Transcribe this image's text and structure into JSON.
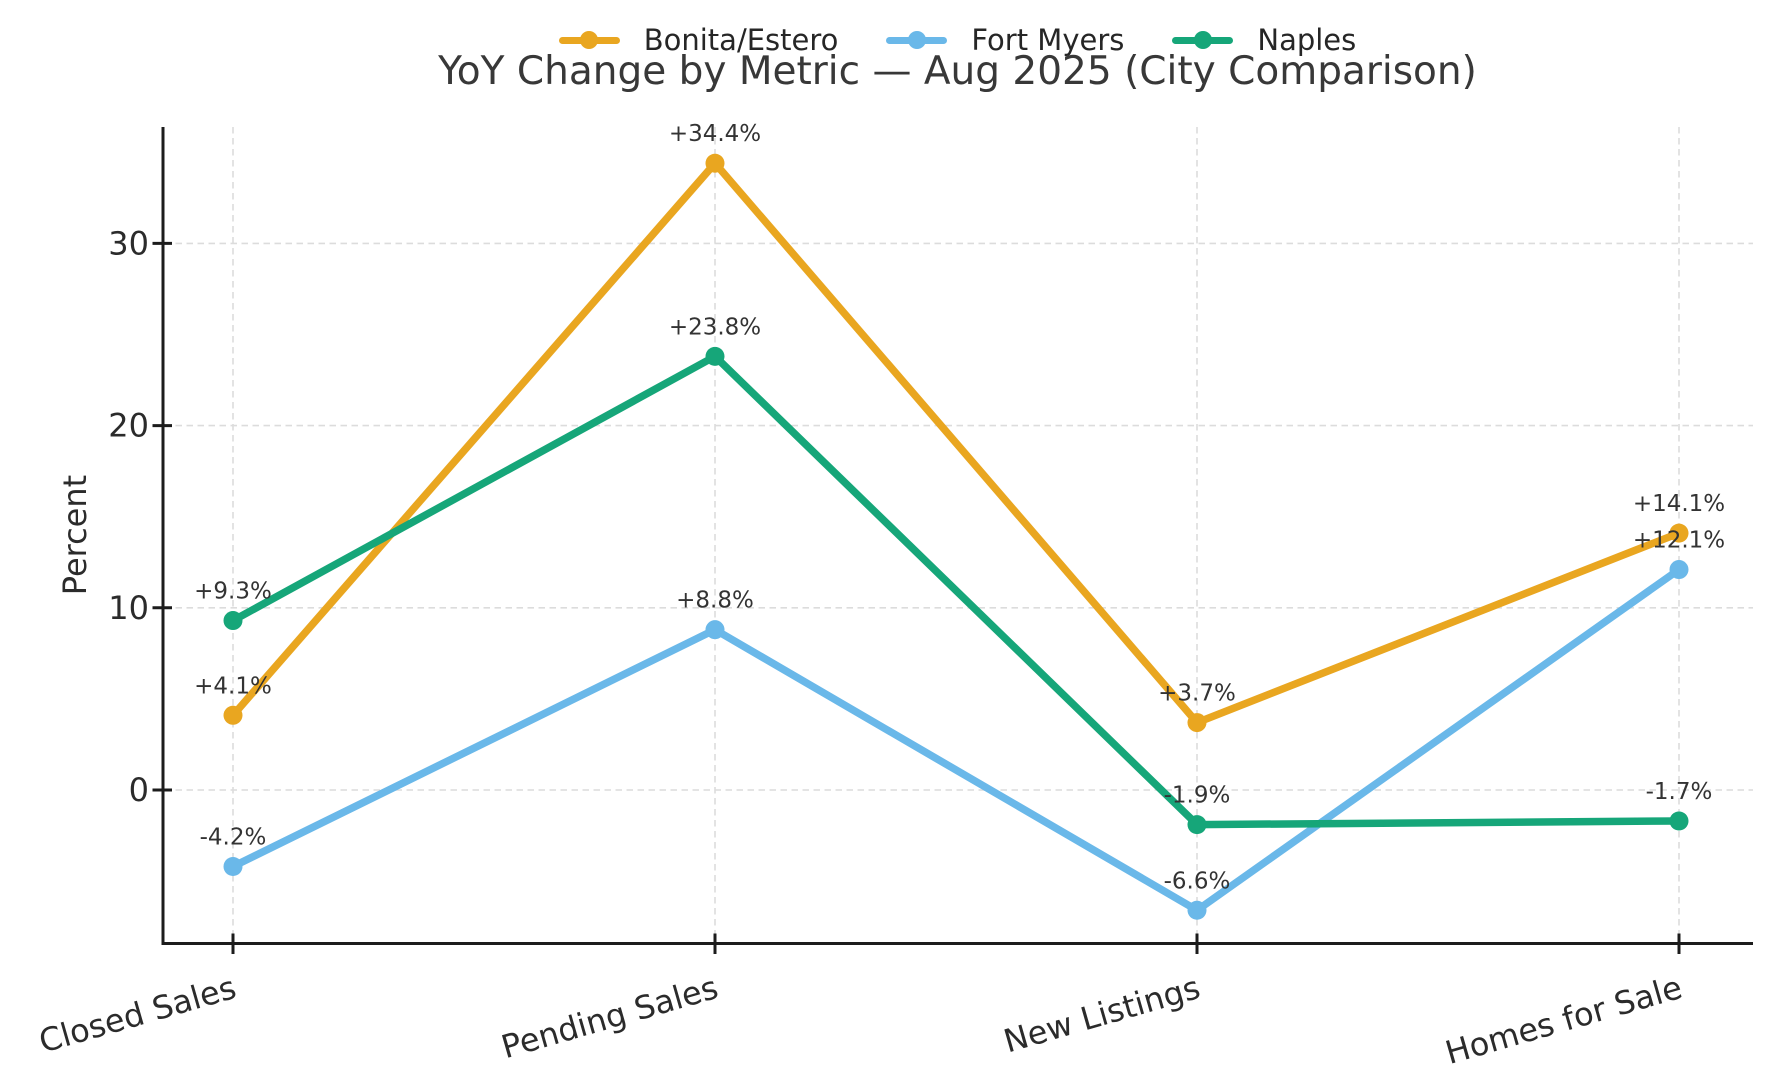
{
  "chart_data": {
    "type": "line",
    "title": "YoY Change by Metric — Aug 2025 (City Comparison)",
    "ylabel": "Percent",
    "categories": [
      "Closed Sales",
      "Pending Sales",
      "New Listings",
      "Homes for Sale"
    ],
    "series": [
      {
        "name": "Bonita/Estero",
        "color": "#E9A620",
        "values": [
          4.1,
          34.4,
          3.7,
          14.1
        ],
        "point_labels": [
          "+4.1%",
          "+34.4%",
          "+3.7%",
          "+14.1%"
        ]
      },
      {
        "name": "Fort Myers",
        "color": "#6AB8E9",
        "values": [
          -4.2,
          8.8,
          -6.6,
          12.1
        ],
        "point_labels": [
          "-4.2%",
          "+8.8%",
          "-6.6%",
          "+12.1%"
        ]
      },
      {
        "name": "Naples",
        "color": "#16A679",
        "values": [
          9.3,
          23.8,
          -1.9,
          -1.7
        ],
        "point_labels": [
          "+9.3%",
          "+23.8%",
          "-1.9%",
          "-1.7%"
        ]
      }
    ],
    "yticks": [
      "0",
      "10",
      "20",
      "30"
    ],
    "ytick_values": [
      0,
      10,
      20,
      30
    ],
    "ylim": [
      -8.3,
      36.4
    ],
    "grid": true,
    "grid_style": "dashed",
    "legend_position": "top-center",
    "colors": {
      "grid": "#DCDCDC",
      "axis": "#1C1C1C",
      "tick_label": "#2B2B2B",
      "point_label": "#333333",
      "title": "#383838",
      "legend_text": "#262626",
      "background": "#FFFFFF"
    }
  }
}
